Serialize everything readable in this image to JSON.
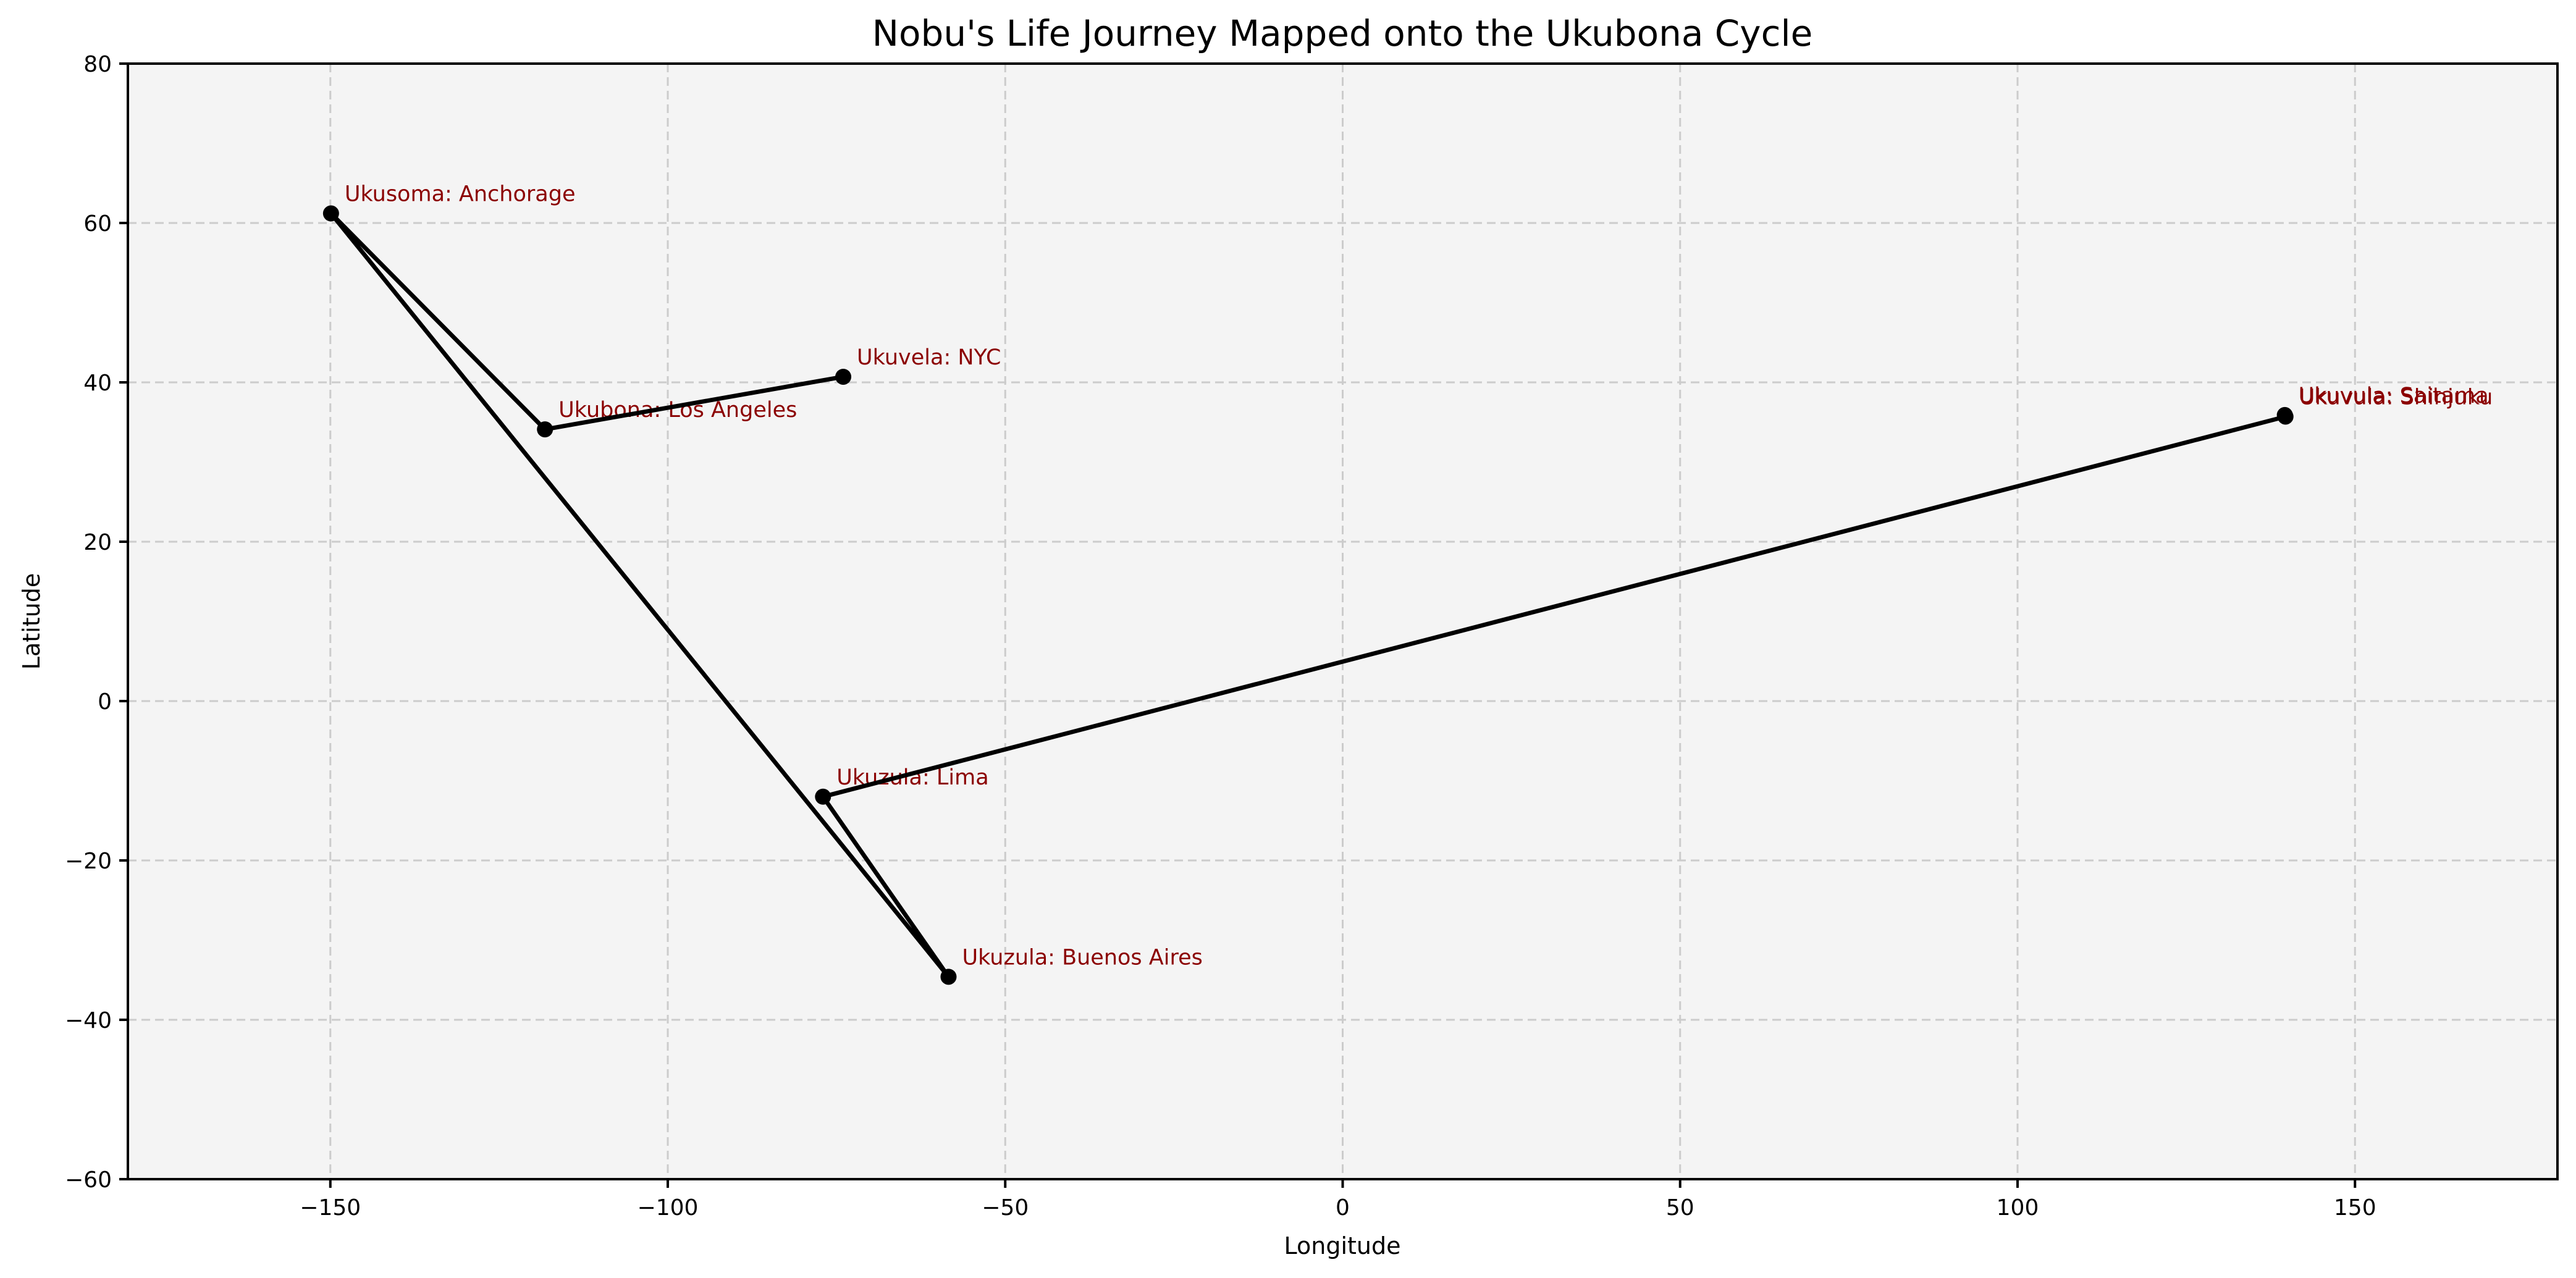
{
  "chart_data": {
    "type": "line",
    "title": "Nobu's Life Journey Mapped onto the Ukubona Cycle",
    "xlabel": "Longitude",
    "ylabel": "Latitude",
    "xlim": [
      -180,
      180
    ],
    "ylim": [
      -60,
      80
    ],
    "xticks": [
      -150,
      -100,
      -50,
      0,
      50,
      100,
      150
    ],
    "xtick_labels": [
      "−150",
      "−100",
      "−50",
      "0",
      "50",
      "100",
      "150"
    ],
    "yticks": [
      -60,
      -40,
      -20,
      0,
      20,
      40,
      60,
      80
    ],
    "ytick_labels": [
      "−60",
      "−40",
      "−20",
      "0",
      "20",
      "40",
      "60",
      "80"
    ],
    "grid": true,
    "background": "#f4f4f4",
    "line_color": "#000000",
    "label_color": "#8b0000",
    "points": [
      {
        "stage": "Ukuvela",
        "place": "NYC",
        "label": "Ukuvela: NYC",
        "lon": -74.0,
        "lat": 40.7
      },
      {
        "stage": "Ukubona",
        "place": "Los Angeles",
        "label": "Ukubona: Los Angeles",
        "lon": -118.2,
        "lat": 34.1
      },
      {
        "stage": "Ukusoma",
        "place": "Anchorage",
        "label": "Ukusoma: Anchorage",
        "lon": -149.9,
        "lat": 61.2
      },
      {
        "stage": "Ukuzula",
        "place": "Buenos Aires",
        "label": "Ukuzula: Buenos Aires",
        "lon": -58.4,
        "lat": -34.6
      },
      {
        "stage": "Ukuzula",
        "place": "Lima",
        "label": "Ukuzula: Lima",
        "lon": -77.0,
        "lat": -12.0
      },
      {
        "stage": "Ukuvula",
        "place": "Shinjuku",
        "label": "Ukuvula: Shinjuku",
        "lon": 139.7,
        "lat": 35.7
      },
      {
        "stage": "Ukuvula",
        "place": "Saitama",
        "label": "Ukuvula: Saitama",
        "lon": 139.6,
        "lat": 35.9
      }
    ]
  }
}
